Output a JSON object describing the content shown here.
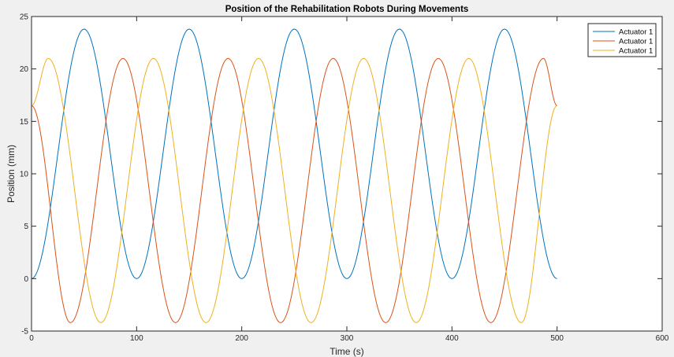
{
  "chart_data": {
    "type": "line",
    "title": "Position of the Rehabilitation Robots During Movements",
    "xlabel": "Time (s)",
    "ylabel": "Position (mm)",
    "xlim": [
      0,
      600
    ],
    "ylim": [
      -5,
      25
    ],
    "xticks": [
      0,
      100,
      200,
      300,
      400,
      500,
      600
    ],
    "yticks": [
      -5,
      0,
      5,
      10,
      15,
      20,
      25
    ],
    "grid": false,
    "legend_position": "top-right",
    "x_range": [
      0,
      500
    ],
    "series": [
      {
        "name": "Actuator 1",
        "color": "#0072bd",
        "x": [
          0,
          50,
          100,
          150,
          200,
          250,
          300,
          350,
          400,
          450,
          500
        ],
        "y": [
          0.0,
          23.8,
          0.0,
          23.8,
          0.0,
          23.8,
          0.0,
          23.8,
          0.0,
          23.8,
          0.0
        ]
      },
      {
        "name": "Actuator 1",
        "color": "#d95319",
        "x": [
          0,
          37,
          87,
          137,
          187,
          237,
          287,
          337,
          387,
          437,
          487,
          500
        ],
        "y": [
          16.5,
          -4.2,
          21.0,
          -4.2,
          21.0,
          -4.2,
          21.0,
          -4.2,
          21.0,
          -4.2,
          21.0,
          16.5
        ]
      },
      {
        "name": "Actuator 1",
        "color": "#edb120",
        "x": [
          0,
          16,
          66,
          116,
          166,
          216,
          266,
          316,
          366,
          416,
          466,
          500
        ],
        "y": [
          16.5,
          21.0,
          -4.2,
          21.0,
          -4.2,
          21.0,
          -4.2,
          21.0,
          -4.2,
          21.0,
          -4.2,
          16.5
        ]
      }
    ]
  }
}
